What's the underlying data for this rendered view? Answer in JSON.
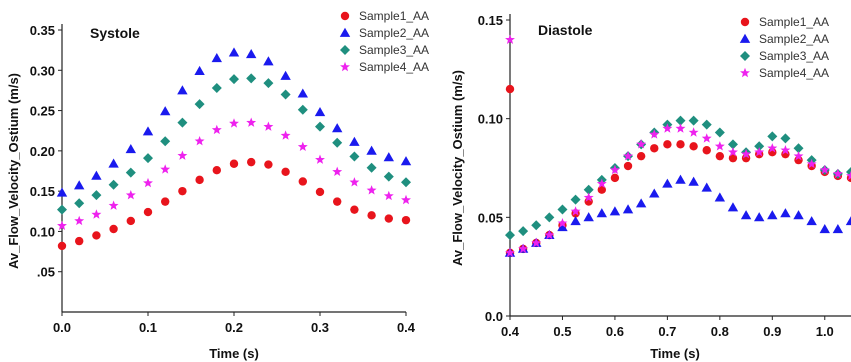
{
  "chart_data": [
    {
      "type": "scatter",
      "title": "Systole",
      "xlabel": "Time (s)",
      "ylabel": "Av_Flow_Velocity_Ostium (m/s)",
      "xlim": [
        0.0,
        0.4
      ],
      "ylim": [
        0.0,
        0.35
      ],
      "xticks": [
        "0.0",
        "0.1",
        "0.2",
        "0.3",
        "0.4"
      ],
      "yticks": [
        ".05",
        "0.10",
        "0.15",
        "0.20",
        "0.25",
        "0.30",
        "0.35"
      ],
      "ytick_values": [
        0.05,
        0.1,
        0.15,
        0.2,
        0.25,
        0.3,
        0.35
      ],
      "legend": "top-right",
      "series": [
        {
          "name": "Sample1_AA",
          "color": "#e8141c",
          "marker": "circle",
          "x": [
            0.0,
            0.02,
            0.04,
            0.06,
            0.08,
            0.1,
            0.12,
            0.14,
            0.16,
            0.18,
            0.2,
            0.22,
            0.24,
            0.26,
            0.28,
            0.3,
            0.32,
            0.34,
            0.36,
            0.38,
            0.4
          ],
          "y": [
            0.082,
            0.088,
            0.095,
            0.103,
            0.113,
            0.124,
            0.137,
            0.15,
            0.164,
            0.176,
            0.184,
            0.186,
            0.183,
            0.174,
            0.162,
            0.149,
            0.137,
            0.127,
            0.12,
            0.116,
            0.114
          ]
        },
        {
          "name": "Sample2_AA",
          "color": "#1a1aee",
          "marker": "triangle",
          "x": [
            0.0,
            0.02,
            0.04,
            0.06,
            0.08,
            0.1,
            0.12,
            0.14,
            0.16,
            0.18,
            0.2,
            0.22,
            0.24,
            0.26,
            0.28,
            0.3,
            0.32,
            0.34,
            0.36,
            0.38,
            0.4
          ],
          "y": [
            0.148,
            0.157,
            0.169,
            0.184,
            0.202,
            0.224,
            0.249,
            0.275,
            0.299,
            0.315,
            0.322,
            0.32,
            0.311,
            0.293,
            0.271,
            0.248,
            0.228,
            0.211,
            0.2,
            0.192,
            0.187
          ]
        },
        {
          "name": "Sample3_AA",
          "color": "#1f8f7f",
          "marker": "diamond",
          "x": [
            0.0,
            0.02,
            0.04,
            0.06,
            0.08,
            0.1,
            0.12,
            0.14,
            0.16,
            0.18,
            0.2,
            0.22,
            0.24,
            0.26,
            0.28,
            0.3,
            0.32,
            0.34,
            0.36,
            0.38,
            0.4
          ],
          "y": [
            0.127,
            0.135,
            0.145,
            0.158,
            0.173,
            0.191,
            0.212,
            0.235,
            0.258,
            0.278,
            0.289,
            0.29,
            0.284,
            0.27,
            0.251,
            0.23,
            0.21,
            0.193,
            0.179,
            0.168,
            0.161
          ]
        },
        {
          "name": "Sample4_AA",
          "color": "#ee22ee",
          "marker": "star",
          "x": [
            0.0,
            0.02,
            0.04,
            0.06,
            0.08,
            0.1,
            0.12,
            0.14,
            0.16,
            0.18,
            0.2,
            0.22,
            0.24,
            0.26,
            0.28,
            0.3,
            0.32,
            0.34,
            0.36,
            0.38,
            0.4
          ],
          "y": [
            0.107,
            0.113,
            0.121,
            0.132,
            0.145,
            0.16,
            0.177,
            0.194,
            0.212,
            0.226,
            0.234,
            0.235,
            0.23,
            0.219,
            0.205,
            0.189,
            0.174,
            0.161,
            0.151,
            0.144,
            0.139
          ]
        }
      ]
    },
    {
      "type": "scatter",
      "title": "Diastole",
      "xlabel": "Time (s)",
      "ylabel": "Av_Flow_Velocity_Ostium (m/s)",
      "xlim": [
        0.4,
        1.05
      ],
      "ylim": [
        0.0,
        0.15
      ],
      "xticks": [
        "0.4",
        "0.5",
        "0.6",
        "0.7",
        "0.8",
        "0.9",
        "1.0"
      ],
      "yticks": [
        "0.0",
        "0.05",
        "0.10",
        "0.15"
      ],
      "ytick_values": [
        0.0,
        0.05,
        0.1,
        0.15
      ],
      "legend": "top-right",
      "series": [
        {
          "name": "Sample1_AA",
          "color": "#e8141c",
          "marker": "circle",
          "x": [
            0.4,
            0.425,
            0.45,
            0.475,
            0.5,
            0.525,
            0.55,
            0.575,
            0.6,
            0.625,
            0.65,
            0.675,
            0.7,
            0.725,
            0.75,
            0.775,
            0.8,
            0.825,
            0.85,
            0.875,
            0.9,
            0.925,
            0.95,
            0.975,
            1.0,
            1.025,
            1.05
          ],
          "y": [
            0.032,
            0.034,
            0.037,
            0.041,
            0.046,
            0.052,
            0.058,
            0.064,
            0.07,
            0.076,
            0.081,
            0.085,
            0.087,
            0.087,
            0.086,
            0.084,
            0.081,
            0.08,
            0.08,
            0.082,
            0.083,
            0.082,
            0.079,
            0.076,
            0.073,
            0.071,
            0.07
          ]
        },
        {
          "name": "Sample2_AA",
          "color": "#1a1aee",
          "marker": "triangle",
          "x": [
            0.4,
            0.425,
            0.45,
            0.475,
            0.5,
            0.525,
            0.55,
            0.575,
            0.6,
            0.625,
            0.65,
            0.675,
            0.7,
            0.725,
            0.75,
            0.775,
            0.8,
            0.825,
            0.85,
            0.875,
            0.9,
            0.925,
            0.95,
            0.975,
            1.0,
            1.025,
            1.05
          ],
          "y": [
            0.032,
            0.034,
            0.037,
            0.041,
            0.045,
            0.048,
            0.05,
            0.052,
            0.053,
            0.054,
            0.057,
            0.062,
            0.067,
            0.069,
            0.068,
            0.065,
            0.06,
            0.055,
            0.051,
            0.05,
            0.051,
            0.052,
            0.051,
            0.048,
            0.044,
            0.044,
            0.048
          ]
        },
        {
          "name": "Sample3_AA",
          "color": "#1f8f7f",
          "marker": "diamond",
          "x": [
            0.4,
            0.425,
            0.45,
            0.475,
            0.5,
            0.525,
            0.55,
            0.575,
            0.6,
            0.625,
            0.65,
            0.675,
            0.7,
            0.725,
            0.75,
            0.775,
            0.8,
            0.825,
            0.85,
            0.875,
            0.9,
            0.925,
            0.95,
            0.975,
            1.0,
            1.025,
            1.05
          ],
          "y": [
            0.041,
            0.043,
            0.046,
            0.05,
            0.054,
            0.059,
            0.064,
            0.069,
            0.075,
            0.081,
            0.087,
            0.093,
            0.097,
            0.099,
            0.099,
            0.097,
            0.093,
            0.087,
            0.083,
            0.086,
            0.091,
            0.09,
            0.085,
            0.079,
            0.074,
            0.072,
            0.073
          ]
        },
        {
          "name": "Sample4_AA",
          "color": "#ee22ee",
          "marker": "star",
          "x": [
            0.4,
            0.425,
            0.45,
            0.475,
            0.5,
            0.525,
            0.55,
            0.575,
            0.6,
            0.625,
            0.65,
            0.675,
            0.7,
            0.725,
            0.75,
            0.775,
            0.8,
            0.825,
            0.85,
            0.875,
            0.9,
            0.925,
            0.95,
            0.975,
            1.0,
            1.025,
            1.05
          ],
          "y": [
            0.032,
            0.034,
            0.037,
            0.041,
            0.047,
            0.053,
            0.06,
            0.067,
            0.074,
            0.081,
            0.087,
            0.092,
            0.095,
            0.095,
            0.093,
            0.09,
            0.086,
            0.083,
            0.082,
            0.083,
            0.085,
            0.084,
            0.081,
            0.077,
            0.074,
            0.072,
            0.071
          ]
        }
      ],
      "outliers": [
        {
          "series": "Sample1_AA",
          "x": 0.4,
          "y": 0.115
        },
        {
          "series": "Sample4_AA",
          "x": 0.4,
          "y": 0.14
        }
      ]
    }
  ]
}
